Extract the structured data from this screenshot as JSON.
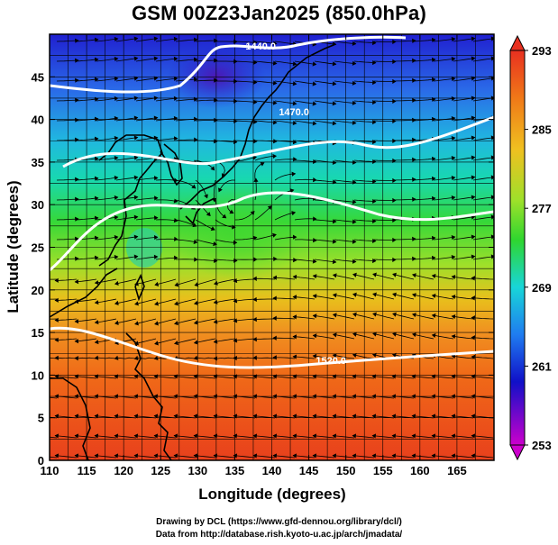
{
  "title": "GSM 00Z23Jan2025 (850.0hPa)",
  "map": {
    "lon_range": [
      110,
      170
    ],
    "lat_range": [
      0,
      50
    ],
    "grid_step_deg": 2.5,
    "field_min_color": "#cc00cc",
    "field_colors": [
      "#cc00cc",
      "#1010c8",
      "#1f7cf0",
      "#18d6d8",
      "#2fd62f",
      "#c6e81c",
      "#f0a020",
      "#f07818",
      "#e83c1c"
    ],
    "streamline_color": "#000000",
    "contour_color": "#ffffff",
    "contour_labels": [
      {
        "text": "1440.0",
        "lon": 138.5,
        "lat": 48.2
      },
      {
        "text": "1470.0",
        "lon": 143,
        "lat": 40.5
      },
      {
        "text": "1520.0",
        "lon": 148,
        "lat": 11.3
      }
    ]
  },
  "x_axis": {
    "title": "Longitude (degrees)",
    "ticks": [
      "110",
      "115",
      "120",
      "125",
      "130",
      "135",
      "140",
      "145",
      "150",
      "155",
      "160",
      "165"
    ],
    "tick_values": [
      110,
      115,
      120,
      125,
      130,
      135,
      140,
      145,
      150,
      155,
      160,
      165
    ]
  },
  "y_axis": {
    "title": "Latitude  (degrees)",
    "ticks": [
      "0",
      "5",
      "10",
      "15",
      "20",
      "25",
      "30",
      "35",
      "40",
      "45"
    ],
    "tick_values": [
      0,
      5,
      10,
      15,
      20,
      25,
      30,
      35,
      40,
      45
    ]
  },
  "colorbar": {
    "labels": [
      "293",
      "285",
      "277",
      "269",
      "261",
      "253"
    ],
    "values": [
      293,
      285,
      277,
      269,
      261,
      253
    ],
    "range": [
      253,
      293
    ]
  },
  "footer": {
    "drawing": "Drawing by DCL (https://www.gfd-dennou.org/library/dcl/)",
    "data": "Data from http://database.rish.kyoto-u.ac.jp/arch/jmadata/"
  }
}
